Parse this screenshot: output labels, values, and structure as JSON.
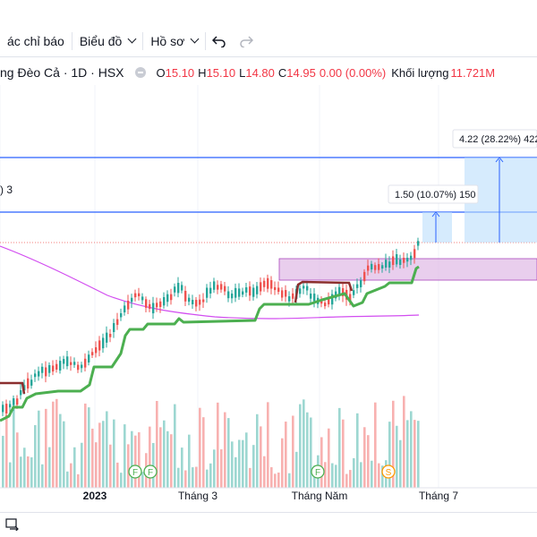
{
  "toolbar": {
    "indicators_label": "ác chỉ báo",
    "chart_type_label": "Biểu đồ",
    "profile_label": "Hồ sơ",
    "undo_icon": "undo-icon",
    "redo_icon": "redo-icon"
  },
  "legend": {
    "symbol": "ng Đèo Cả · 1D · HSX",
    "open_label": "O",
    "open": "15.10",
    "high_label": "H",
    "high": "15.10",
    "low_label": "L",
    "low": "14.80",
    "close_label": "C",
    "close": "14.95",
    "change": "0.00 (0.00%)",
    "volume_label": "Khối lượng",
    "volume": "11.721M"
  },
  "indicator_label": ") 3",
  "measures": {
    "small": "1.50 (10.07%) 150",
    "large": "4.22 (28.22%) 422"
  },
  "time_axis": {
    "labels": [
      "2023",
      "Tháng 3",
      "Tháng Năm",
      "Tháng 7"
    ]
  },
  "event_markers": [
    "F",
    "F",
    "F",
    "S"
  ],
  "colors": {
    "up": "#26a69a",
    "down": "#ef5350",
    "trend_line": "#4caf50",
    "trend_dark": "#8b2e2e",
    "ma_line": "#d24df0",
    "zone_fill": "#e1bee7",
    "measure_line": "#2962ff"
  }
}
